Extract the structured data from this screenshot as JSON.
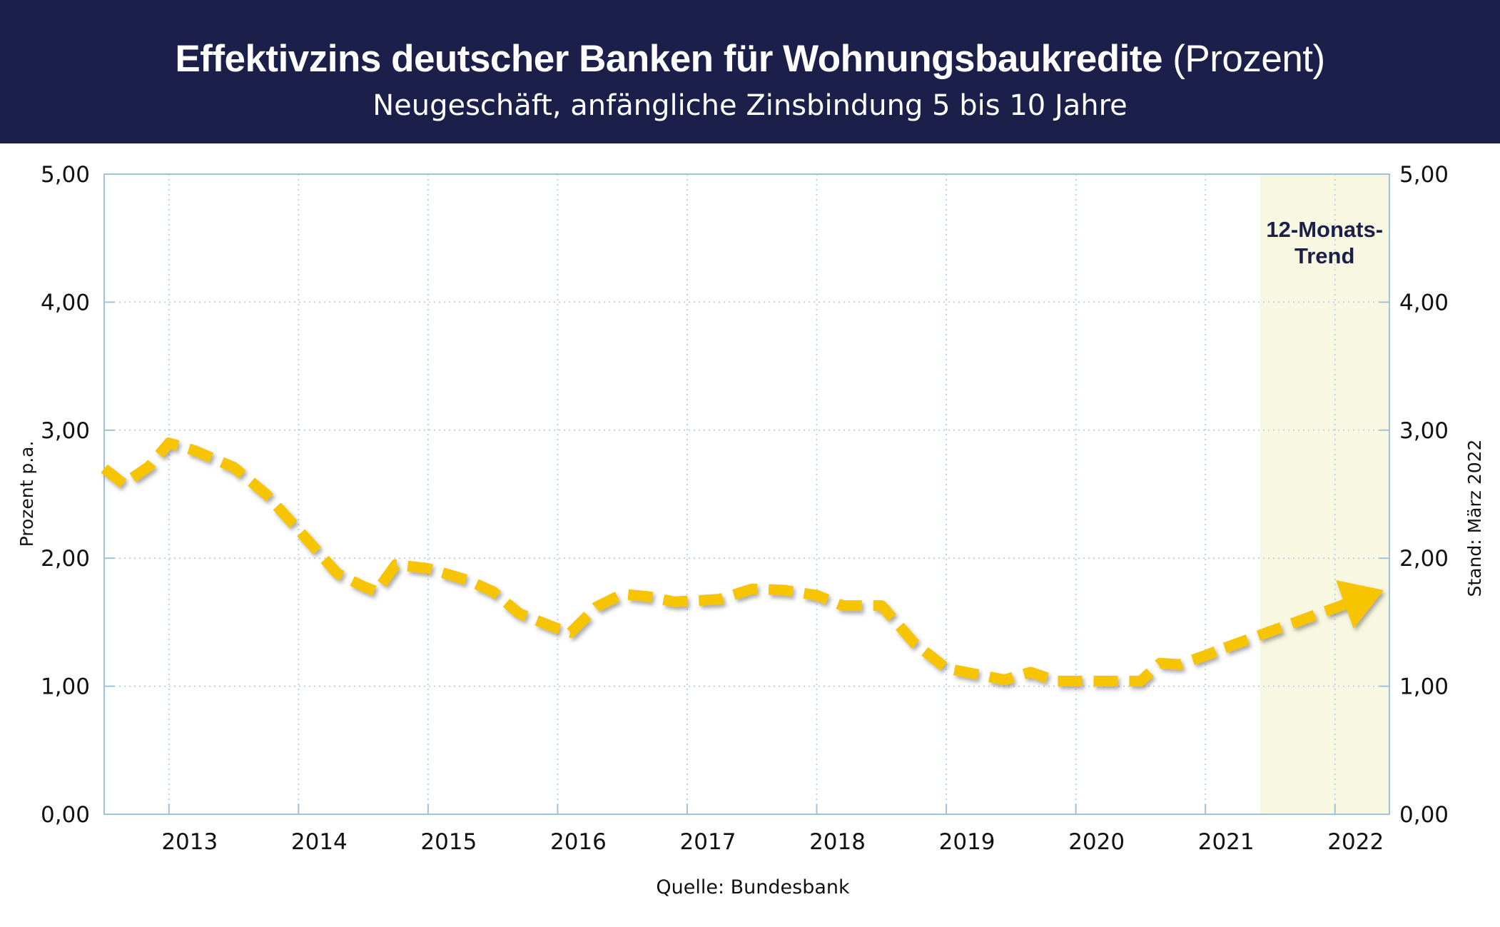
{
  "header": {
    "title": "Effektivzins deutscher Banken für Wohnungsbaukredite",
    "title_unit": "(Prozent)",
    "subtitle": "Neugeschäft, anfängliche Zinsbindung 5 bis 10 Jahre"
  },
  "colors": {
    "header_bg": "#1c1f4a",
    "line": "#f7c400",
    "trend_band": "#f8f8e2",
    "grid": "#b9d3e3",
    "axis": "#9fc3d9"
  },
  "chart_data": {
    "type": "line",
    "title": "Effektivzins deutscher Banken für Wohnungsbaukredite",
    "subtitle": "Neugeschäft, anfängliche Zinsbindung 5 bis 10 Jahre",
    "xlabel": "",
    "ylabel": "Prozent p.a.",
    "ylim": [
      0,
      5
    ],
    "y_ticks": [
      "0,00",
      "1,00",
      "2,00",
      "3,00",
      "4,00",
      "5,00"
    ],
    "x_ticks": [
      "2013",
      "2014",
      "2015",
      "2016",
      "2017",
      "2018",
      "2019",
      "2020",
      "2021",
      "2022"
    ],
    "xlim": [
      2012.5,
      2022.42
    ],
    "grid": true,
    "line_style": "dashed",
    "series": [
      {
        "x": [
          2012.5,
          2012.65,
          2012.85,
          2013.0,
          2013.2,
          2013.5,
          2013.75,
          2014.0,
          2014.3,
          2014.5,
          2014.6,
          2014.75,
          2015.0,
          2015.3,
          2015.5,
          2015.7,
          2016.0,
          2016.1,
          2016.3,
          2016.5,
          2016.7,
          2016.9,
          2017.1,
          2017.25,
          2017.5,
          2017.75,
          2018.0,
          2018.2,
          2018.5,
          2018.75,
          2019.0,
          2019.25,
          2019.45,
          2019.65,
          2019.85,
          2020.2,
          2020.5,
          2020.65,
          2020.8,
          2021.0,
          2021.15
        ],
        "y": [
          2.7,
          2.58,
          2.72,
          2.9,
          2.84,
          2.71,
          2.5,
          2.22,
          1.88,
          1.78,
          1.74,
          1.95,
          1.92,
          1.83,
          1.74,
          1.57,
          1.45,
          1.42,
          1.62,
          1.72,
          1.7,
          1.66,
          1.67,
          1.68,
          1.76,
          1.75,
          1.71,
          1.63,
          1.63,
          1.34,
          1.14,
          1.09,
          1.05,
          1.11,
          1.04,
          1.04,
          1.04,
          1.18,
          1.17,
          1.24,
          1.3
        ]
      }
    ],
    "annotations": [
      {
        "text_lines": [
          "12-Monats-",
          "Trend"
        ],
        "x_range": [
          2021.42,
          2022.42
        ],
        "trend_end": [
          2022.42,
          1.75
        ],
        "trend_start": [
          2021.15,
          1.3
        ]
      }
    ],
    "y_right_label": "Stand: März 2022",
    "source": "Quelle: Bundesbank"
  }
}
